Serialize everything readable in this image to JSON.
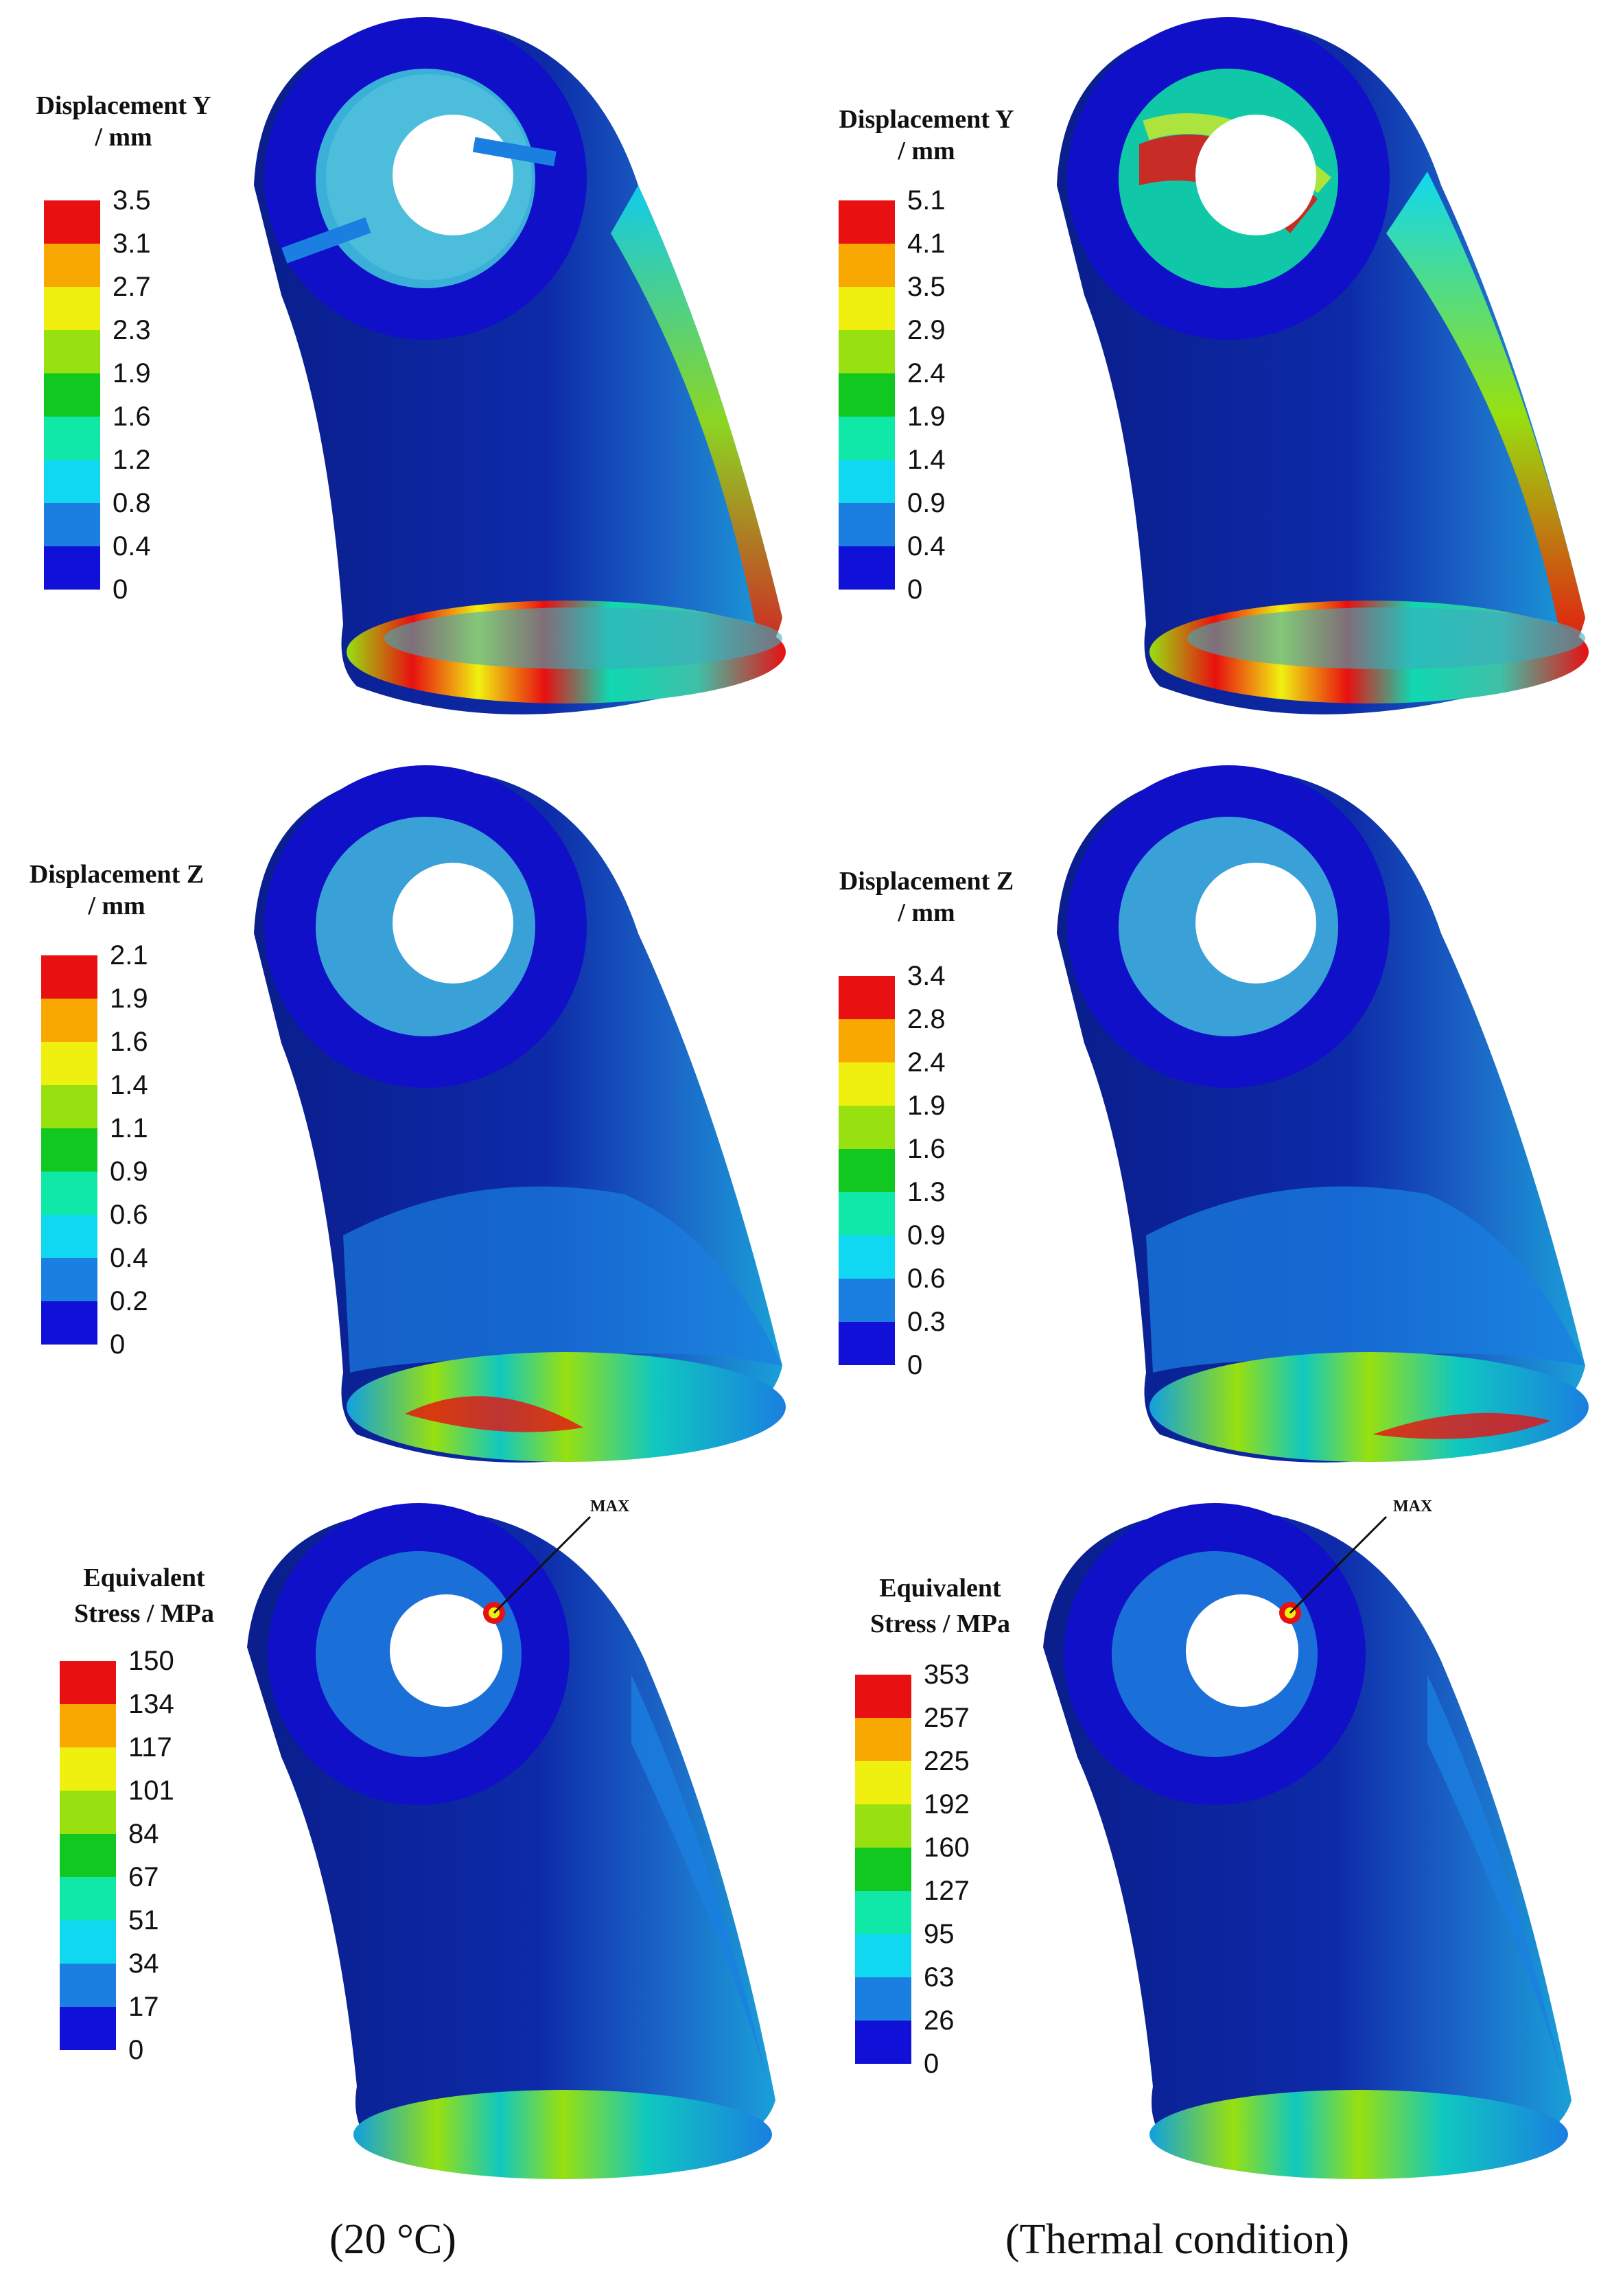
{
  "colormap": [
    "#1010d8",
    "#1a7fe0",
    "#10d8f0",
    "#10e8a8",
    "#10c820",
    "#98e010",
    "#f0f010",
    "#f8a800",
    "#e81010"
  ],
  "panels": [
    {
      "title_line1": "Displacement Y",
      "title_line2": "/ mm",
      "ticks": [
        "3.5",
        "3.1",
        "2.7",
        "2.3",
        "1.9",
        "1.6",
        "1.2",
        "0.8",
        "0.4",
        "0"
      ]
    },
    {
      "title_line1": "Displacement Y",
      "title_line2": "/ mm",
      "ticks": [
        "5.1",
        "4.1",
        "3.5",
        "2.9",
        "2.4",
        "1.9",
        "1.4",
        "0.9",
        "0.4",
        "0"
      ]
    },
    {
      "title_line1": "Displacement Z",
      "title_line2": "/ mm",
      "ticks": [
        "2.1",
        "1.9",
        "1.6",
        "1.4",
        "1.1",
        "0.9",
        "0.6",
        "0.4",
        "0.2",
        "0"
      ]
    },
    {
      "title_line1": "Displacement Z",
      "title_line2": "/ mm",
      "ticks": [
        "3.4",
        "2.8",
        "2.4",
        "1.9",
        "1.6",
        "1.3",
        "0.9",
        "0.6",
        "0.3",
        "0"
      ]
    },
    {
      "title_line1": "Equivalent",
      "title_line2": "Stress / MPa",
      "ticks": [
        "150",
        "134",
        "117",
        "101",
        "84",
        "67",
        "51",
        "34",
        "17",
        "0"
      ],
      "marker": "MAX"
    },
    {
      "title_line1": "Equivalent",
      "title_line2": "Stress / MPa",
      "ticks": [
        "353",
        "257",
        "225",
        "192",
        "160",
        "127",
        "95",
        "63",
        "26",
        "0"
      ],
      "marker": "MAX"
    }
  ],
  "captions": {
    "left": "(20 °C)",
    "right": "(Thermal condition)"
  }
}
